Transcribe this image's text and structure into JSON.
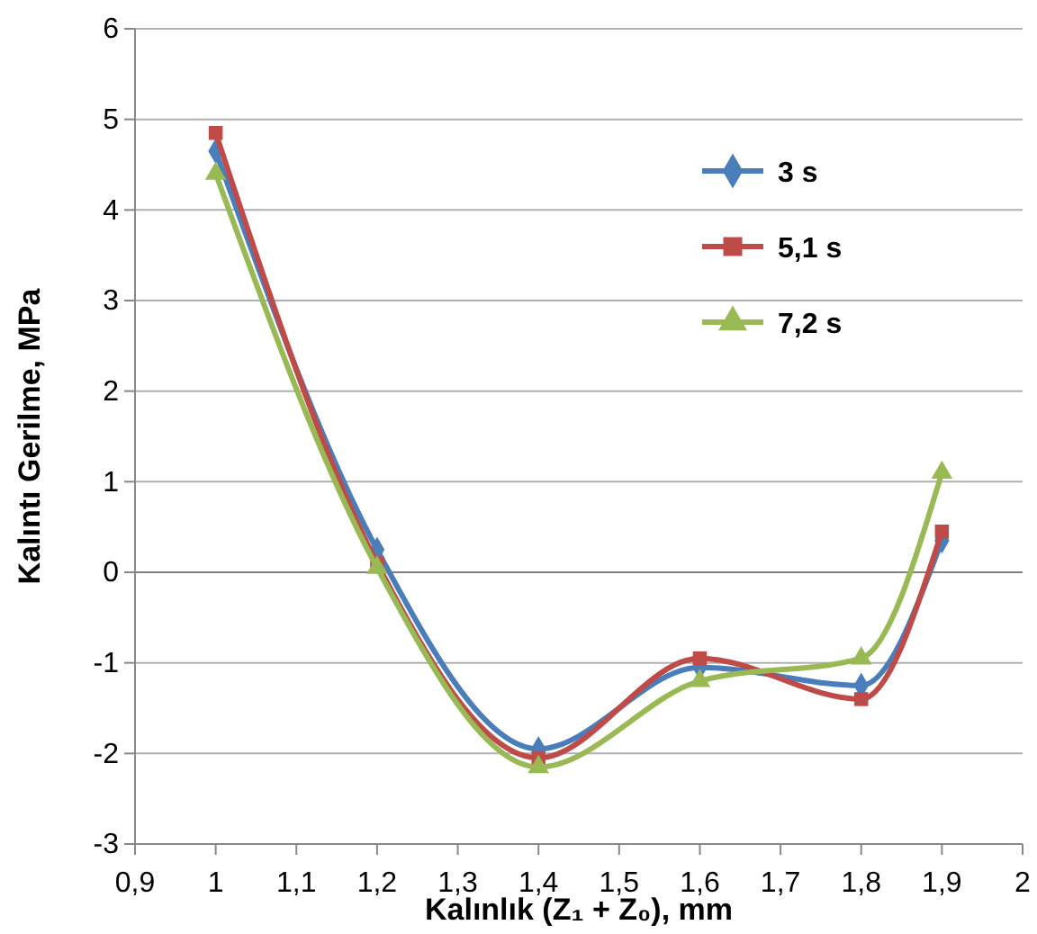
{
  "chart_data": {
    "type": "line",
    "xlabel": "Kalınlık (Z₁ + Z₀), mm",
    "ylabel": "Kalıntı Gerilme, MPa",
    "x": [
      1,
      1.2,
      1.4,
      1.6,
      1.8,
      1.9
    ],
    "series": [
      {
        "name": "3 s",
        "color": "#4a7ebb",
        "marker": "diamond",
        "values": [
          4.65,
          0.25,
          -1.95,
          -1.05,
          -1.25,
          0.35
        ]
      },
      {
        "name": "5,1 s",
        "color": "#be4b48",
        "marker": "square",
        "values": [
          4.85,
          0.1,
          -2.05,
          -0.95,
          -1.4,
          0.45
        ]
      },
      {
        "name": "7,2 s",
        "color": "#98b954",
        "marker": "triangle",
        "values": [
          4.4,
          0.05,
          -2.15,
          -1.2,
          -0.95,
          1.1
        ]
      }
    ],
    "xlim": [
      0.9,
      2
    ],
    "xticks": [
      {
        "value": 0.9,
        "label": "0,9"
      },
      {
        "value": 1,
        "label": "1"
      },
      {
        "value": 1.1,
        "label": "1,1"
      },
      {
        "value": 1.2,
        "label": "1,2"
      },
      {
        "value": 1.3,
        "label": "1,3"
      },
      {
        "value": 1.4,
        "label": "1,4"
      },
      {
        "value": 1.5,
        "label": "1,5"
      },
      {
        "value": 1.6,
        "label": "1,6"
      },
      {
        "value": 1.7,
        "label": "1,7"
      },
      {
        "value": 1.8,
        "label": "1,8"
      },
      {
        "value": 1.9,
        "label": "1,9"
      },
      {
        "value": 2,
        "label": "2"
      }
    ],
    "ylim": [
      -3,
      6
    ],
    "yticks": [
      -3,
      -2,
      -1,
      0,
      1,
      2,
      3,
      4,
      5,
      6
    ],
    "grid": "y",
    "legend": "top right",
    "line_style": "solid"
  }
}
